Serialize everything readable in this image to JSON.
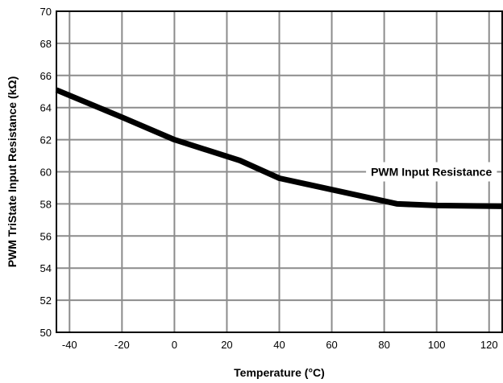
{
  "chart_data": {
    "type": "line",
    "title": "",
    "xlabel": "Temperature (°C)",
    "ylabel": "PWM TriState Input Resistance (kΩ)",
    "xlim": [
      -45,
      125
    ],
    "ylim": [
      50,
      70
    ],
    "xticks": [
      -40,
      -20,
      0,
      20,
      40,
      60,
      80,
      100,
      120
    ],
    "yticks": [
      50,
      52,
      54,
      56,
      58,
      60,
      62,
      64,
      66,
      68,
      70
    ],
    "grid": true,
    "legend": "none",
    "series": [
      {
        "name": "PWM Input Resistance",
        "x": [
          -45,
          -20,
          0,
          25,
          40,
          85,
          100,
          125
        ],
        "y": [
          65.1,
          63.4,
          62.0,
          60.7,
          59.6,
          58.0,
          57.9,
          57.85
        ]
      }
    ],
    "annotations": [
      {
        "text": "PWM Input Resistance",
        "x": 98,
        "y": 60
      }
    ]
  }
}
